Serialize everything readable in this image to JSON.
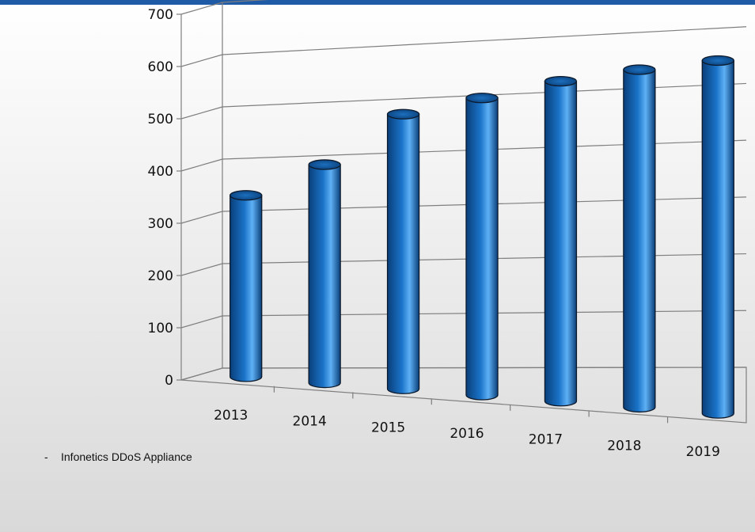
{
  "frame": {
    "top_border_color": "#1f5aa6",
    "background_top": "#ffffff",
    "background_bottom": "#d9d9d9"
  },
  "source_note": {
    "bullet": "-",
    "text": "Infonetics DDoS Appliance"
  },
  "chart_data": {
    "type": "bar",
    "style": "3d-cylinder",
    "categories": [
      "2013",
      "2014",
      "2015",
      "2016",
      "2017",
      "2018",
      "2019"
    ],
    "values": [
      345,
      410,
      510,
      545,
      580,
      605,
      625
    ],
    "y_ticks": [
      "0",
      "100",
      "200",
      "300",
      "400",
      "500",
      "600",
      "700"
    ],
    "ylim": [
      0,
      700
    ],
    "grid": true,
    "legend": "none",
    "bar_color": "#1a73c8",
    "bar_color_dark": "#0a3f7a",
    "bar_color_light": "#5eb0f5"
  }
}
